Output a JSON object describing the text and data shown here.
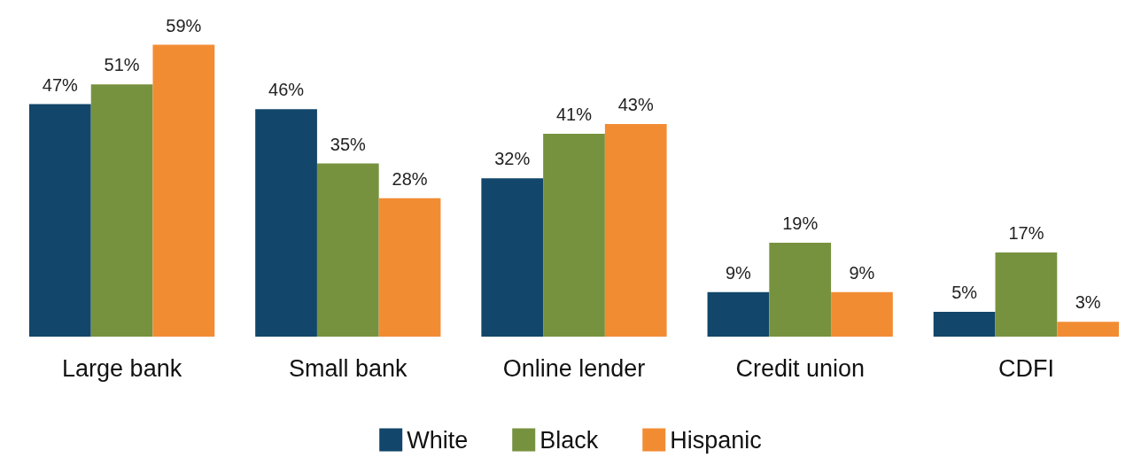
{
  "chart_data": {
    "type": "bar",
    "categories": [
      "Large bank",
      "Small bank",
      "Online lender",
      "Credit union",
      "CDFI"
    ],
    "series": [
      {
        "name": "White",
        "color": "#12466a",
        "values": [
          47,
          46,
          32,
          9,
          5
        ],
        "value_labels": [
          "47%",
          "46%",
          "32%",
          "9%",
          "5%"
        ]
      },
      {
        "name": "Black",
        "color": "#77923f",
        "values": [
          51,
          35,
          41,
          19,
          17
        ],
        "value_labels": [
          "51%",
          "35%",
          "41%",
          "19%",
          "17%"
        ]
      },
      {
        "name": "Hispanic",
        "color": "#f28c33",
        "values": [
          59,
          28,
          43,
          9,
          3
        ],
        "value_labels": [
          "59%",
          "28%",
          "43%",
          "9%",
          "3%"
        ]
      }
    ],
    "legend": "bottom"
  }
}
